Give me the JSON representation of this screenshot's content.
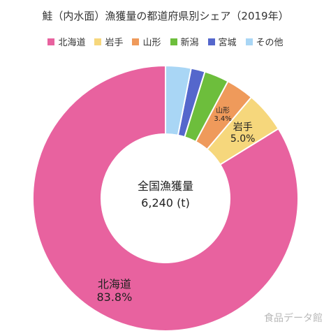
{
  "chart_data": {
    "type": "pie",
    "style": "donut",
    "title": "鮭（内水面）漁獲量の都道府県別シェア（2019年）",
    "categories": [
      "北海道",
      "岩手",
      "山形",
      "新潟",
      "宮城",
      "その他"
    ],
    "values": [
      83.8,
      5.0,
      3.4,
      3.0,
      1.7,
      3.1
    ],
    "unit": "%",
    "colors": [
      "#e8629f",
      "#f6d77c",
      "#ef9a5b",
      "#6dbe3c",
      "#5567cc",
      "#a9d6f5"
    ],
    "data_labels": [
      {
        "category": "北海道",
        "name": "北海道",
        "value": "83.8%"
      },
      {
        "category": "岩手",
        "name": "岩手",
        "value": "5.0%"
      },
      {
        "category": "山形",
        "name": "山形",
        "value": "3.4%"
      }
    ],
    "center_label": {
      "line1": "全国漁獲量",
      "line2": "6,240 (t)"
    },
    "legend_position": "top",
    "start_angle_deg": 0,
    "direction": "counterclockwise"
  },
  "watermark": "食品データ館"
}
